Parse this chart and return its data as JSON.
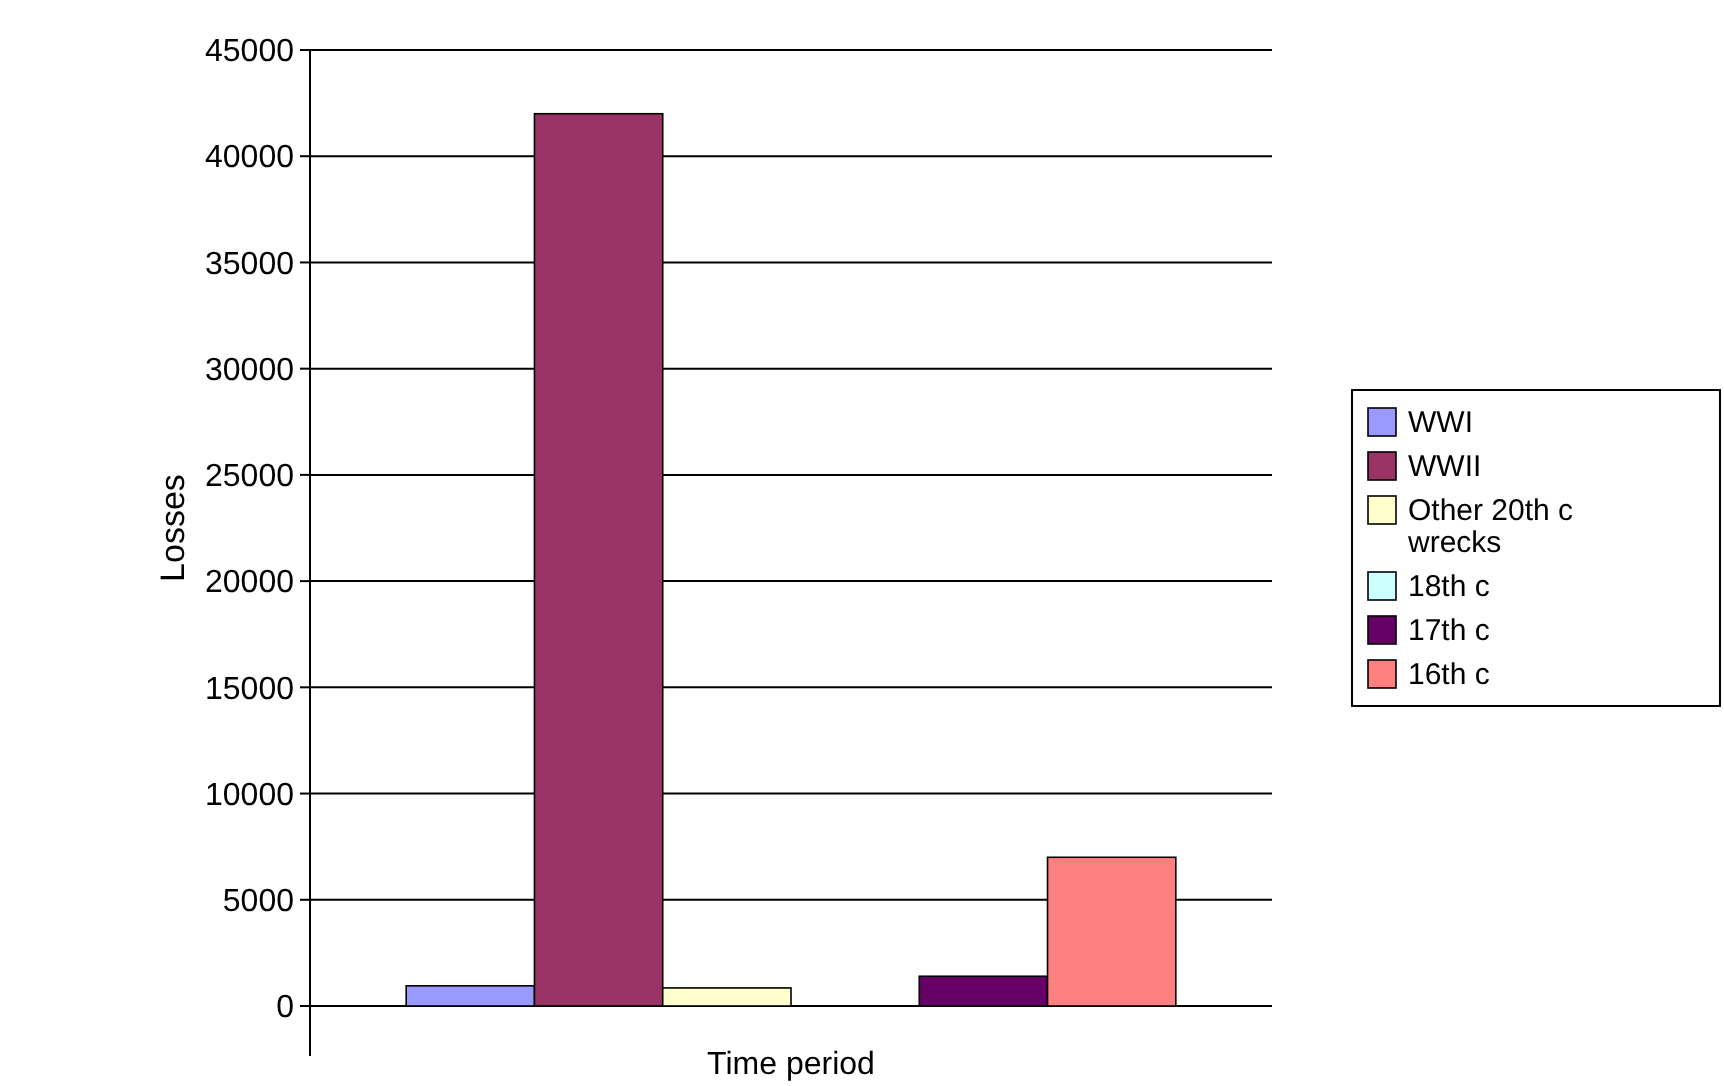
{
  "chart_data": {
    "type": "bar",
    "xlabel": "Time period",
    "ylabel": "Losses",
    "categories": [
      null
    ],
    "series": [
      {
        "name": "WWI",
        "color": "#9999ff",
        "values": [
          950
        ]
      },
      {
        "name": "WWII",
        "color": "#993366",
        "values": [
          42000
        ]
      },
      {
        "name": "Other 20th c wrecks",
        "color": "#ffffcc",
        "values": [
          850
        ]
      },
      {
        "name": "18th c",
        "color": "#ccffff",
        "values": [
          0
        ]
      },
      {
        "name": "17th c",
        "color": "#660066",
        "values": [
          1400
        ]
      },
      {
        "name": "16th c",
        "color": "#ff8080",
        "values": [
          7000
        ]
      }
    ],
    "ylim": [
      0,
      45000
    ],
    "yticks": [
      0,
      5000,
      10000,
      15000,
      20000,
      25000,
      30000,
      35000,
      40000,
      45000
    ],
    "grid": "y",
    "legend": "right"
  }
}
